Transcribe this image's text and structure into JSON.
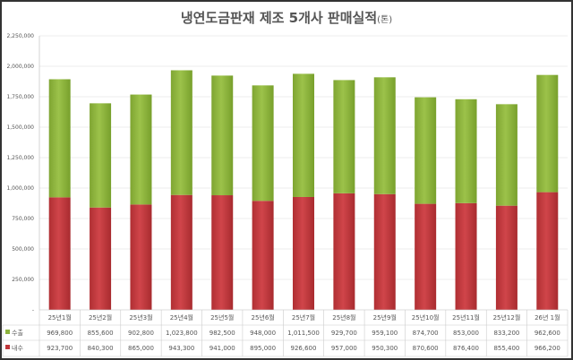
{
  "chart_data": {
    "type": "bar",
    "stacked": true,
    "title": "냉연도금판재 제조 5개사 판매실적",
    "title_unit": "(톤)",
    "categories": [
      "25년1월",
      "25년2월",
      "25년3월",
      "25년4월",
      "25년5월",
      "25년6월",
      "25년7월",
      "25년8월",
      "25년9월",
      "25년10월",
      "25년11월",
      "25년12월",
      "26년 1월"
    ],
    "series": [
      {
        "name": "내수",
        "color": "#c0363a",
        "values": [
          923700,
          840300,
          865000,
          943300,
          941000,
          895000,
          926600,
          957000,
          950300,
          870600,
          876400,
          855400,
          966200
        ]
      },
      {
        "name": "수출",
        "color": "#8db33d",
        "values": [
          969800,
          855600,
          902800,
          1023800,
          982500,
          948000,
          1011500,
          929700,
          959100,
          874700,
          853000,
          833200,
          962600
        ]
      }
    ],
    "ylim": [
      0,
      2250000
    ],
    "yticks": [
      0,
      250000,
      500000,
      750000,
      1000000,
      1250000,
      1500000,
      1750000,
      2000000,
      2250000
    ],
    "ytick_labels": [
      "-",
      "250,000",
      "500,000",
      "750,000",
      "1,000,000",
      "1,250,000",
      "1,500,000",
      "1,750,000",
      "2,000,000",
      "2,250,000"
    ],
    "grid": true,
    "legend": "data-table"
  }
}
